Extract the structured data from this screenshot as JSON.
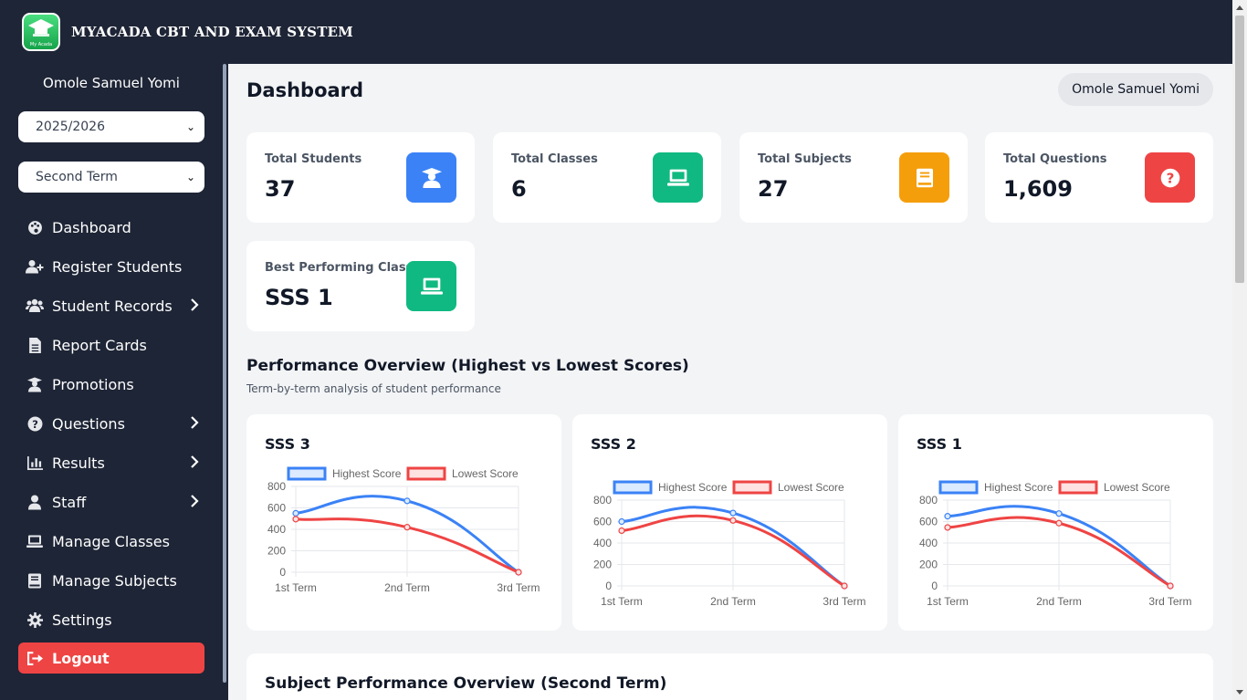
{
  "app": {
    "title": "MYACADA CBT AND EXAM SYSTEM",
    "logo_text": "My Acada"
  },
  "sidebar": {
    "user_name": "Omole Samuel Yomi",
    "session_select": "2025/2026",
    "term_select": "Second Term",
    "items": [
      {
        "label": "Dashboard",
        "icon": "palette-icon",
        "has_submenu": false
      },
      {
        "label": "Register Students",
        "icon": "user-plus-icon",
        "has_submenu": false
      },
      {
        "label": "Student Records",
        "icon": "users-icon",
        "has_submenu": true
      },
      {
        "label": "Report Cards",
        "icon": "file-icon",
        "has_submenu": false
      },
      {
        "label": "Promotions",
        "icon": "graduate-icon",
        "has_submenu": false
      },
      {
        "label": "Questions",
        "icon": "question-circle-icon",
        "has_submenu": true
      },
      {
        "label": "Results",
        "icon": "bar-chart-icon",
        "has_submenu": true
      },
      {
        "label": "Staff",
        "icon": "user-icon",
        "has_submenu": true
      },
      {
        "label": "Manage Classes",
        "icon": "laptop-icon",
        "has_submenu": false
      },
      {
        "label": "Manage Subjects",
        "icon": "book-icon",
        "has_submenu": false
      },
      {
        "label": "Settings",
        "icon": "gear-icon",
        "has_submenu": false
      }
    ],
    "logout_label": "Logout"
  },
  "header": {
    "page_title": "Dashboard",
    "user_chip": "Omole Samuel Yomi"
  },
  "stats": [
    {
      "label": "Total Students",
      "value": "37",
      "icon": "graduate-icon",
      "color": "#3b82f6"
    },
    {
      "label": "Total Classes",
      "value": "6",
      "icon": "laptop-icon",
      "color": "#10b981"
    },
    {
      "label": "Total Subjects",
      "value": "27",
      "icon": "book-icon",
      "color": "#f59e0b"
    },
    {
      "label": "Total Questions",
      "value": "1,609",
      "icon": "question-circle-icon",
      "color": "#ef4444"
    },
    {
      "label": "Best Performing Class",
      "value": "SSS 1",
      "icon": "laptop-icon",
      "color": "#10b981"
    }
  ],
  "performance": {
    "title": "Performance Overview (Highest vs Lowest Scores)",
    "subtitle": "Term-by-term analysis of student performance"
  },
  "chart_data": [
    {
      "type": "line",
      "title": "SSS 3",
      "categories": [
        "1st Term",
        "2nd Term",
        "3rd Term"
      ],
      "series": [
        {
          "name": "Highest Score",
          "values": [
            550,
            665,
            0
          ],
          "color": "#3b82f6"
        },
        {
          "name": "Lowest Score",
          "values": [
            495,
            420,
            0
          ],
          "color": "#ef4444"
        }
      ],
      "ylim": [
        0,
        800
      ],
      "yticks": [
        0,
        200,
        400,
        600,
        800
      ],
      "legend": "top",
      "grid": true
    },
    {
      "type": "line",
      "title": "SSS 2",
      "categories": [
        "1st Term",
        "2nd Term",
        "3rd Term"
      ],
      "series": [
        {
          "name": "Highest Score",
          "values": [
            600,
            680,
            0
          ],
          "color": "#3b82f6"
        },
        {
          "name": "Lowest Score",
          "values": [
            515,
            610,
            0
          ],
          "color": "#ef4444"
        }
      ],
      "ylim": [
        0,
        800
      ],
      "yticks": [
        0,
        200,
        400,
        600,
        800
      ],
      "legend": "top",
      "grid": true
    },
    {
      "type": "line",
      "title": "SSS 1",
      "categories": [
        "1st Term",
        "2nd Term",
        "3rd Term"
      ],
      "series": [
        {
          "name": "Highest Score",
          "values": [
            650,
            675,
            0
          ],
          "color": "#3b82f6"
        },
        {
          "name": "Lowest Score",
          "values": [
            545,
            585,
            0
          ],
          "color": "#ef4444"
        }
      ],
      "ylim": [
        0,
        800
      ],
      "yticks": [
        0,
        200,
        400,
        600,
        800
      ],
      "legend": "top",
      "grid": true
    }
  ],
  "subject_overview": {
    "title": "Subject Performance Overview (Second Term)"
  }
}
